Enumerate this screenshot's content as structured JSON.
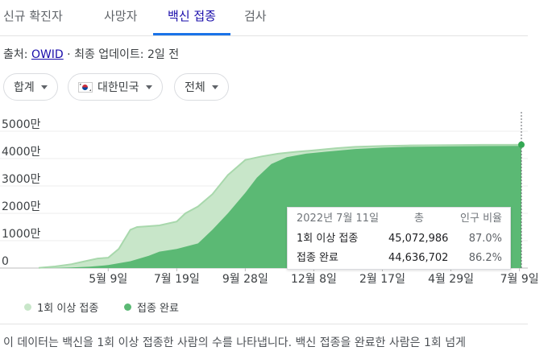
{
  "tabs": [
    {
      "label": "신규 확진자",
      "active": false
    },
    {
      "label": "사망자",
      "active": false
    },
    {
      "label": "백신 접종",
      "active": true
    },
    {
      "label": "검사",
      "active": false
    }
  ],
  "source": {
    "prefix": "출처: ",
    "link": "OWID",
    "suffix": " · 최종 업데이트: 2일 전"
  },
  "filters": {
    "aggregate": "합계",
    "country": "대한민국",
    "range": "전체"
  },
  "colors": {
    "first_dose": "#c8e6c9",
    "full": "#5bb974",
    "first_dose_line": "#a8d8ac",
    "marker": "#34a853"
  },
  "tooltip": {
    "date": "2022년 7월 11일",
    "col_total": "총",
    "col_ratio": "인구 비율",
    "rows": [
      {
        "label": "1회 이상 접종",
        "total": "45,072,986",
        "ratio": "87.0%"
      },
      {
        "label": "접종 완료",
        "total": "44,636,702",
        "ratio": "86.2%"
      }
    ]
  },
  "legend": [
    {
      "label": "1회 이상 접종",
      "color": "#c8e6c9"
    },
    {
      "label": "접종 완료",
      "color": "#5bb974"
    }
  ],
  "note": "이 데이터는 백신을 1회 이상 접종한 사람의 수를 나타냅니다. 백신 접종을 완료한 사람은 1회 넘게",
  "chart_data": {
    "type": "area",
    "y_tick_labels": [
      "0",
      "1000만",
      "2000만",
      "3000만",
      "4000만",
      "5000만"
    ],
    "y_ticks": [
      0,
      10000000,
      20000000,
      30000000,
      40000000,
      50000000
    ],
    "ylim": [
      0,
      50000000
    ],
    "x_tick_labels": [
      "5월 9일",
      "7월 19일",
      "9월 28일",
      "12월 8일",
      "2월 17일",
      "4월 29일",
      "7월 9일"
    ],
    "x_ticks": [
      "2021-05-09",
      "2021-07-19",
      "2021-09-28",
      "2021-12-08",
      "2022-02-17",
      "2022-04-29",
      "2022-07-09"
    ],
    "xlim": [
      "2021-02-26",
      "2022-07-11"
    ],
    "grid": true,
    "legend_position": "bottom-left",
    "series": [
      {
        "name": "1회 이상 접종",
        "x": [
          "2021-02-26",
          "2021-03-15",
          "2021-04-01",
          "2021-04-15",
          "2021-04-28",
          "2021-05-09",
          "2021-05-20",
          "2021-06-01",
          "2021-06-08",
          "2021-06-20",
          "2021-07-01",
          "2021-07-19",
          "2021-07-28",
          "2021-08-10",
          "2021-08-25",
          "2021-09-10",
          "2021-09-28",
          "2021-10-15",
          "2021-11-01",
          "2021-11-20",
          "2021-12-08",
          "2021-12-31",
          "2022-01-20",
          "2022-02-17",
          "2022-03-15",
          "2022-04-29",
          "2022-06-01",
          "2022-07-11"
        ],
        "y": [
          50000,
          600000,
          1400000,
          2500000,
          3500000,
          3800000,
          7000000,
          14000000,
          15000000,
          15300000,
          15600000,
          17000000,
          20000000,
          22500000,
          27000000,
          34000000,
          39500000,
          40800000,
          41800000,
          42500000,
          43000000,
          43800000,
          44300000,
          44600000,
          44800000,
          44950000,
          45020000,
          45072986
        ]
      },
      {
        "name": "접종 완료",
        "x": [
          "2021-02-26",
          "2021-03-15",
          "2021-04-01",
          "2021-04-20",
          "2021-05-09",
          "2021-06-01",
          "2021-06-20",
          "2021-07-01",
          "2021-07-19",
          "2021-08-10",
          "2021-08-25",
          "2021-09-10",
          "2021-09-28",
          "2021-10-10",
          "2021-10-25",
          "2021-11-10",
          "2021-11-30",
          "2021-12-20",
          "2022-01-20",
          "2022-02-17",
          "2022-03-15",
          "2022-04-29",
          "2022-06-01",
          "2022-07-11"
        ],
        "y": [
          0,
          100000,
          200000,
          500000,
          1100000,
          2500000,
          4500000,
          6000000,
          7000000,
          9000000,
          14000000,
          20000000,
          27500000,
          33000000,
          38000000,
          40500000,
          41800000,
          42500000,
          43500000,
          44000000,
          44300000,
          44500000,
          44600000,
          44636702
        ]
      }
    ]
  }
}
